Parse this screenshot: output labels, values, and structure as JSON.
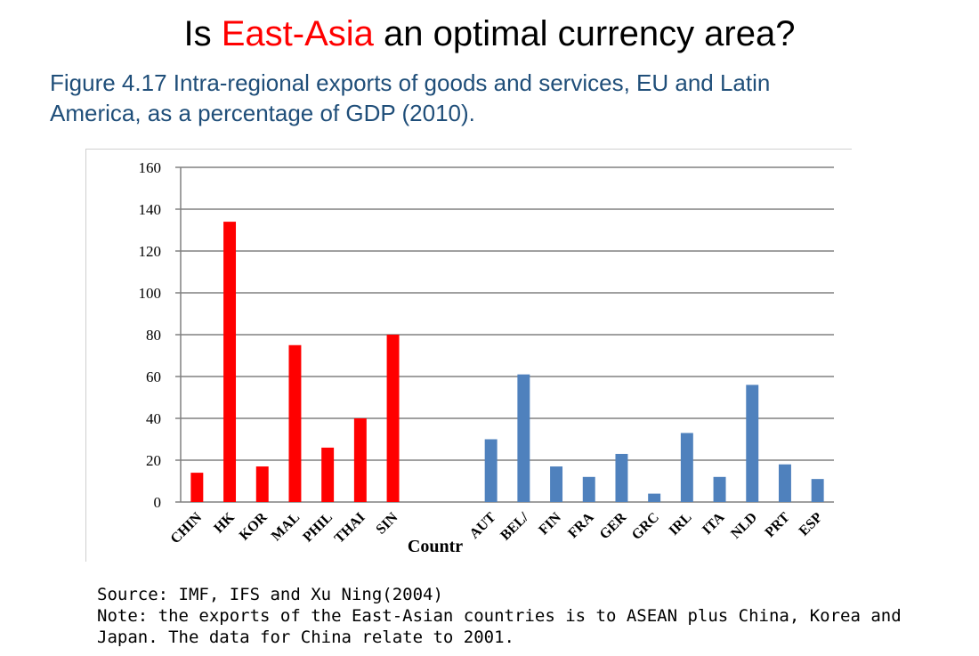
{
  "title": {
    "prefix": "Is ",
    "highlight": "East-Asia",
    "suffix": " an optimal currency area?"
  },
  "caption": {
    "line1": "Figure 4.17 Intra-regional exports of goods and services, EU and Latin",
    "line2": "America, as a percentage of GDP (2010)."
  },
  "colors": {
    "title_accent": "#ff0000",
    "caption_text": "#1f4e79",
    "east_asia_bars": "#ff0000",
    "eu_bars": "#4f81bd",
    "gridline": "#808080"
  },
  "chart_data": {
    "type": "bar",
    "categories": [
      "CHIN",
      "HK",
      "KOR",
      "MAL",
      "PHIL",
      "THAI",
      "SIN",
      "",
      "",
      "AUT",
      "BEL/",
      "FIN",
      "FRA",
      "GER",
      "GRC",
      "IRL",
      "ITA",
      "NLD",
      "PRT",
      "ESP"
    ],
    "values": [
      14,
      134,
      17,
      75,
      26,
      40,
      80,
      null,
      null,
      30,
      61,
      17,
      12,
      23,
      4,
      33,
      12,
      56,
      18,
      11
    ],
    "bar_colors": [
      "#ff0000",
      "#ff0000",
      "#ff0000",
      "#ff0000",
      "#ff0000",
      "#ff0000",
      "#ff0000",
      "",
      "",
      "#4f81bd",
      "#4f81bd",
      "#4f81bd",
      "#4f81bd",
      "#4f81bd",
      "#4f81bd",
      "#4f81bd",
      "#4f81bd",
      "#4f81bd",
      "#4f81bd",
      "#4f81bd"
    ],
    "title": "",
    "xlabel": "Countr",
    "ylabel": "",
    "ylim": [
      0,
      160
    ],
    "yticks": [
      0,
      20,
      40,
      60,
      80,
      100,
      120,
      140,
      160
    ],
    "grid": true,
    "legend": "none"
  },
  "footnote": {
    "source": "Source: IMF, IFS and Xu Ning(2004)",
    "note_line1": "Note:  the exports of the East-Asian countries is to ASEAN plus China, Korea and",
    "note_line2": "Japan. The data for China relate to 2001."
  }
}
